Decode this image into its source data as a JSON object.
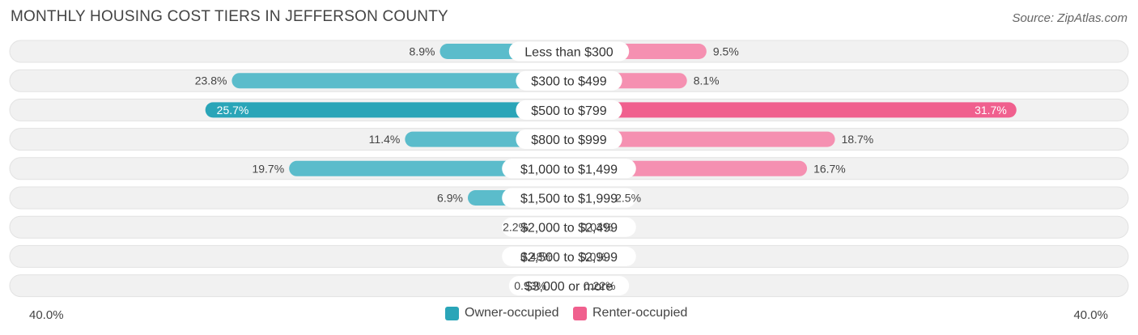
{
  "chart_data": {
    "type": "bar",
    "orientation": "horizontal-diverging",
    "title": "MONTHLY HOUSING COST TIERS IN JEFFERSON COUNTY",
    "source": "Source: ZipAtlas.com",
    "categories": [
      "Less than $300",
      "$300 to $499",
      "$500 to $799",
      "$800 to $999",
      "$1,000 to $1,499",
      "$1,500 to $1,999",
      "$2,000 to $2,499",
      "$2,500 to $2,999",
      "$3,000 or more"
    ],
    "series": [
      {
        "name": "Owner-occupied",
        "color": "#5bbccb",
        "highlight_color": "#2aa5b8",
        "values": [
          8.9,
          23.8,
          25.7,
          11.4,
          19.7,
          6.9,
          2.2,
          0.48,
          0.93
        ],
        "labels": [
          "8.9%",
          "23.8%",
          "25.7%",
          "11.4%",
          "19.7%",
          "6.9%",
          "2.2%",
          "0.48%",
          "0.93%"
        ]
      },
      {
        "name": "Renter-occupied",
        "color": "#f590b1",
        "highlight_color": "#f0608e",
        "values": [
          9.5,
          8.1,
          31.7,
          18.7,
          16.7,
          2.5,
          0.03,
          0.0,
          0.22
        ],
        "labels": [
          "9.5%",
          "8.1%",
          "31.7%",
          "18.7%",
          "16.7%",
          "2.5%",
          "0.03%",
          "0.0%",
          "0.22%"
        ]
      }
    ],
    "highlight_index": 2,
    "xlim": [
      -40,
      40
    ],
    "axis_left_label": "40.0%",
    "axis_right_label": "40.0%",
    "legend_position": "bottom-center"
  }
}
